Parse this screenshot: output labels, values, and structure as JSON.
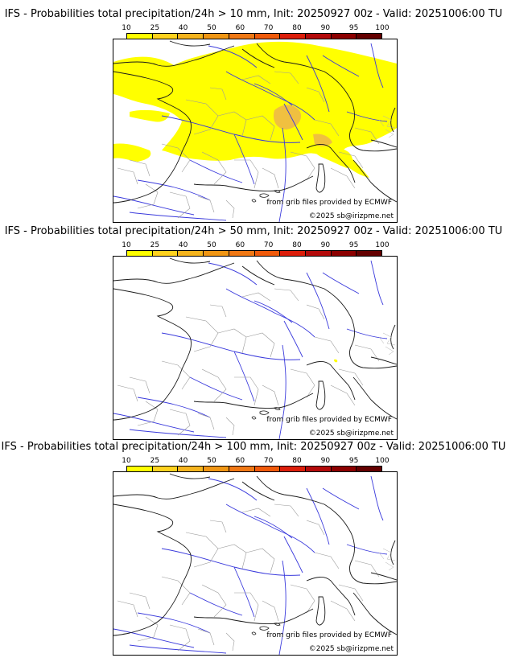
{
  "colorbar": {
    "labels": [
      "10",
      "25",
      "40",
      "50",
      "60",
      "70",
      "80",
      "90",
      "95",
      "100"
    ],
    "colors": [
      "#ffff00",
      "#ffd21e",
      "#f5b41e",
      "#f09614",
      "#f07814",
      "#f05a0a",
      "#dc1e0a",
      "#b40a0a",
      "#8c0000",
      "#640000"
    ]
  },
  "panels": [
    {
      "title": "IFS - Probabilities total precipitation/24h > 10 mm, Init: 20250927 00z - Valid: 20251006:00 TU",
      "credit_source": "from grib files provided by ECMWF",
      "credit_copyright": "©2025 sb@irizpme.net",
      "precip_fill": "#ffff00",
      "precip_highlight": "#f0c040"
    },
    {
      "title": "IFS - Probabilities total precipitation/24h > 50 mm, Init: 20250927 00z - Valid: 20251006:00 TU",
      "credit_source": "from grib files provided by ECMWF",
      "credit_copyright": "©2025 sb@irizpme.net"
    },
    {
      "title": "IFS - Probabilities total precipitation/24h > 100 mm, Init: 20250927 00z - Valid: 20251006:00 TU",
      "credit_source": "from grib files provided by ECMWF",
      "credit_copyright": "©2025 sb@irizpme.net"
    }
  ]
}
